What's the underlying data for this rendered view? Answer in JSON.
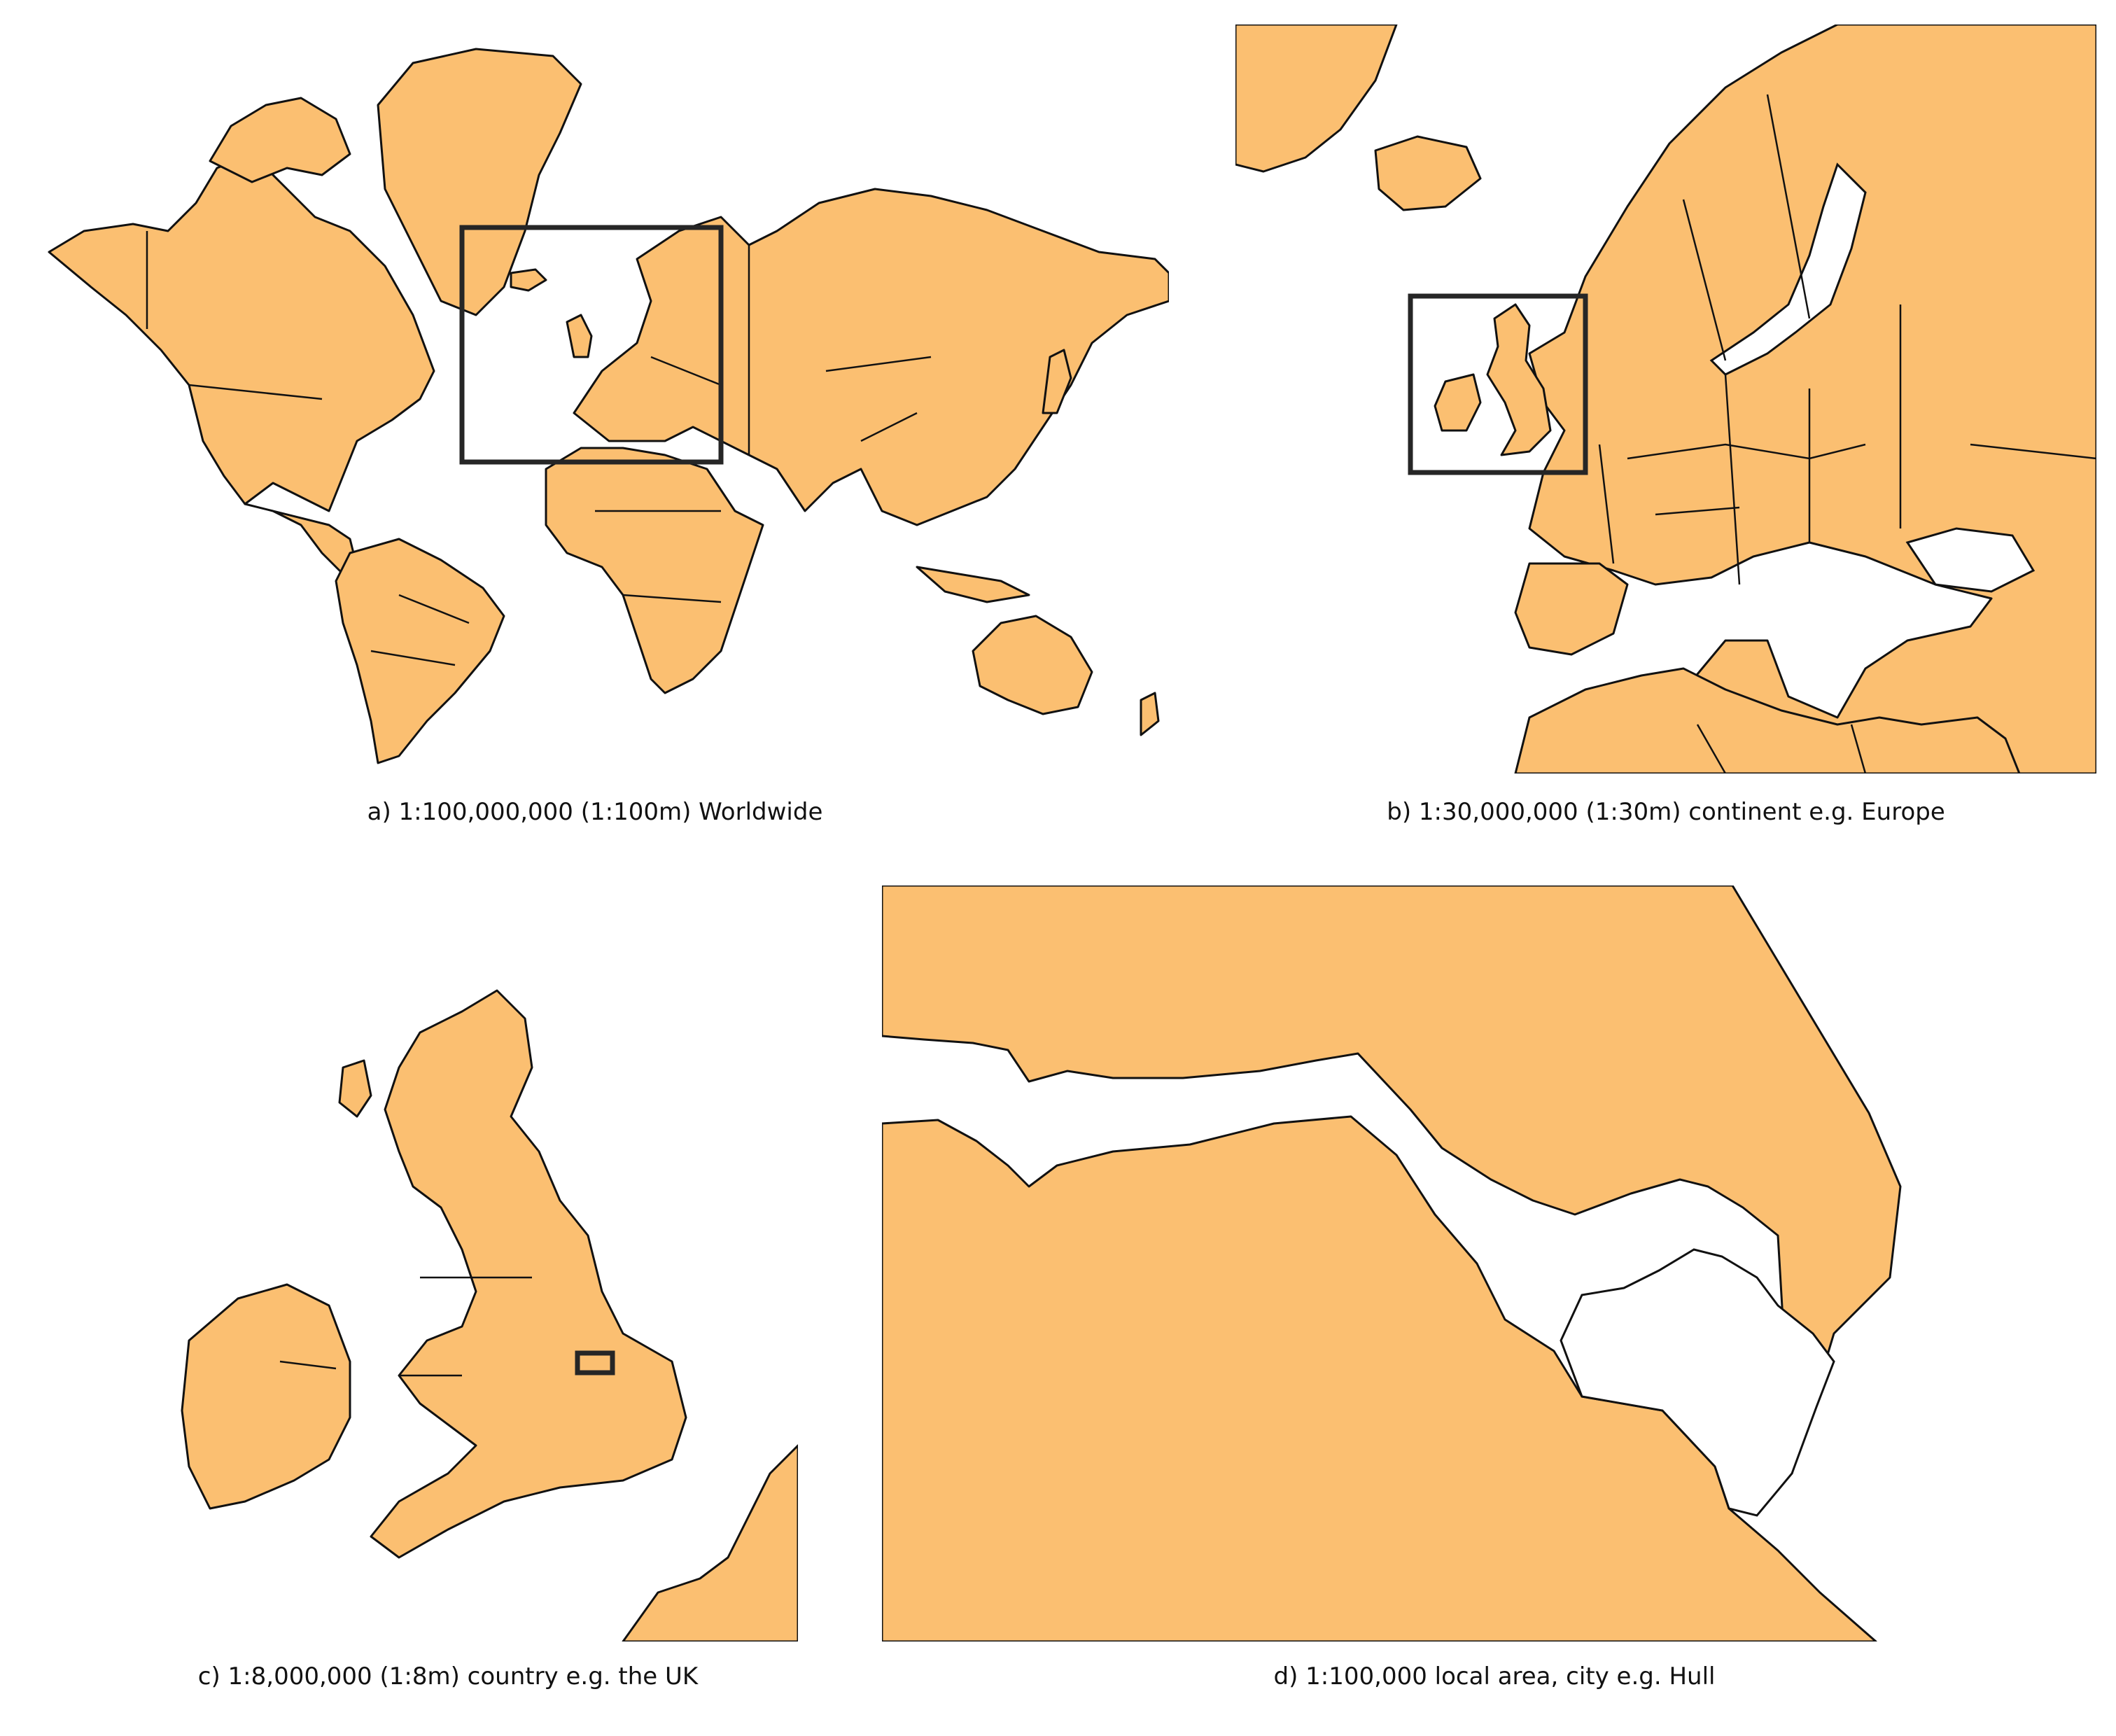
{
  "colors": {
    "land": "#fbbf71",
    "outline": "#111111",
    "water": "#ffffff"
  },
  "panels": [
    {
      "id": "a",
      "caption": "a) 1:100,000,000 (1:100m) Worldwide",
      "scale": "1:100,000,000",
      "extent_label": "Worldwide",
      "shows_extent_box_of": "b"
    },
    {
      "id": "b",
      "caption": "b) 1:30,000,000 (1:30m) continent e.g. Europe",
      "scale": "1:30,000,000",
      "extent_label": "continent e.g. Europe",
      "shows_extent_box_of": "c"
    },
    {
      "id": "c",
      "caption": "c) 1:8,000,000 (1:8m) country e.g. the UK",
      "scale": "1:8,000,000",
      "extent_label": "country e.g. the UK",
      "shows_extent_box_of": "d"
    },
    {
      "id": "d",
      "caption": "d) 1:100,000 local area, city e.g. Hull",
      "scale": "1:100,000",
      "extent_label": "local area, city e.g. Hull",
      "shows_extent_box_of": null
    }
  ]
}
